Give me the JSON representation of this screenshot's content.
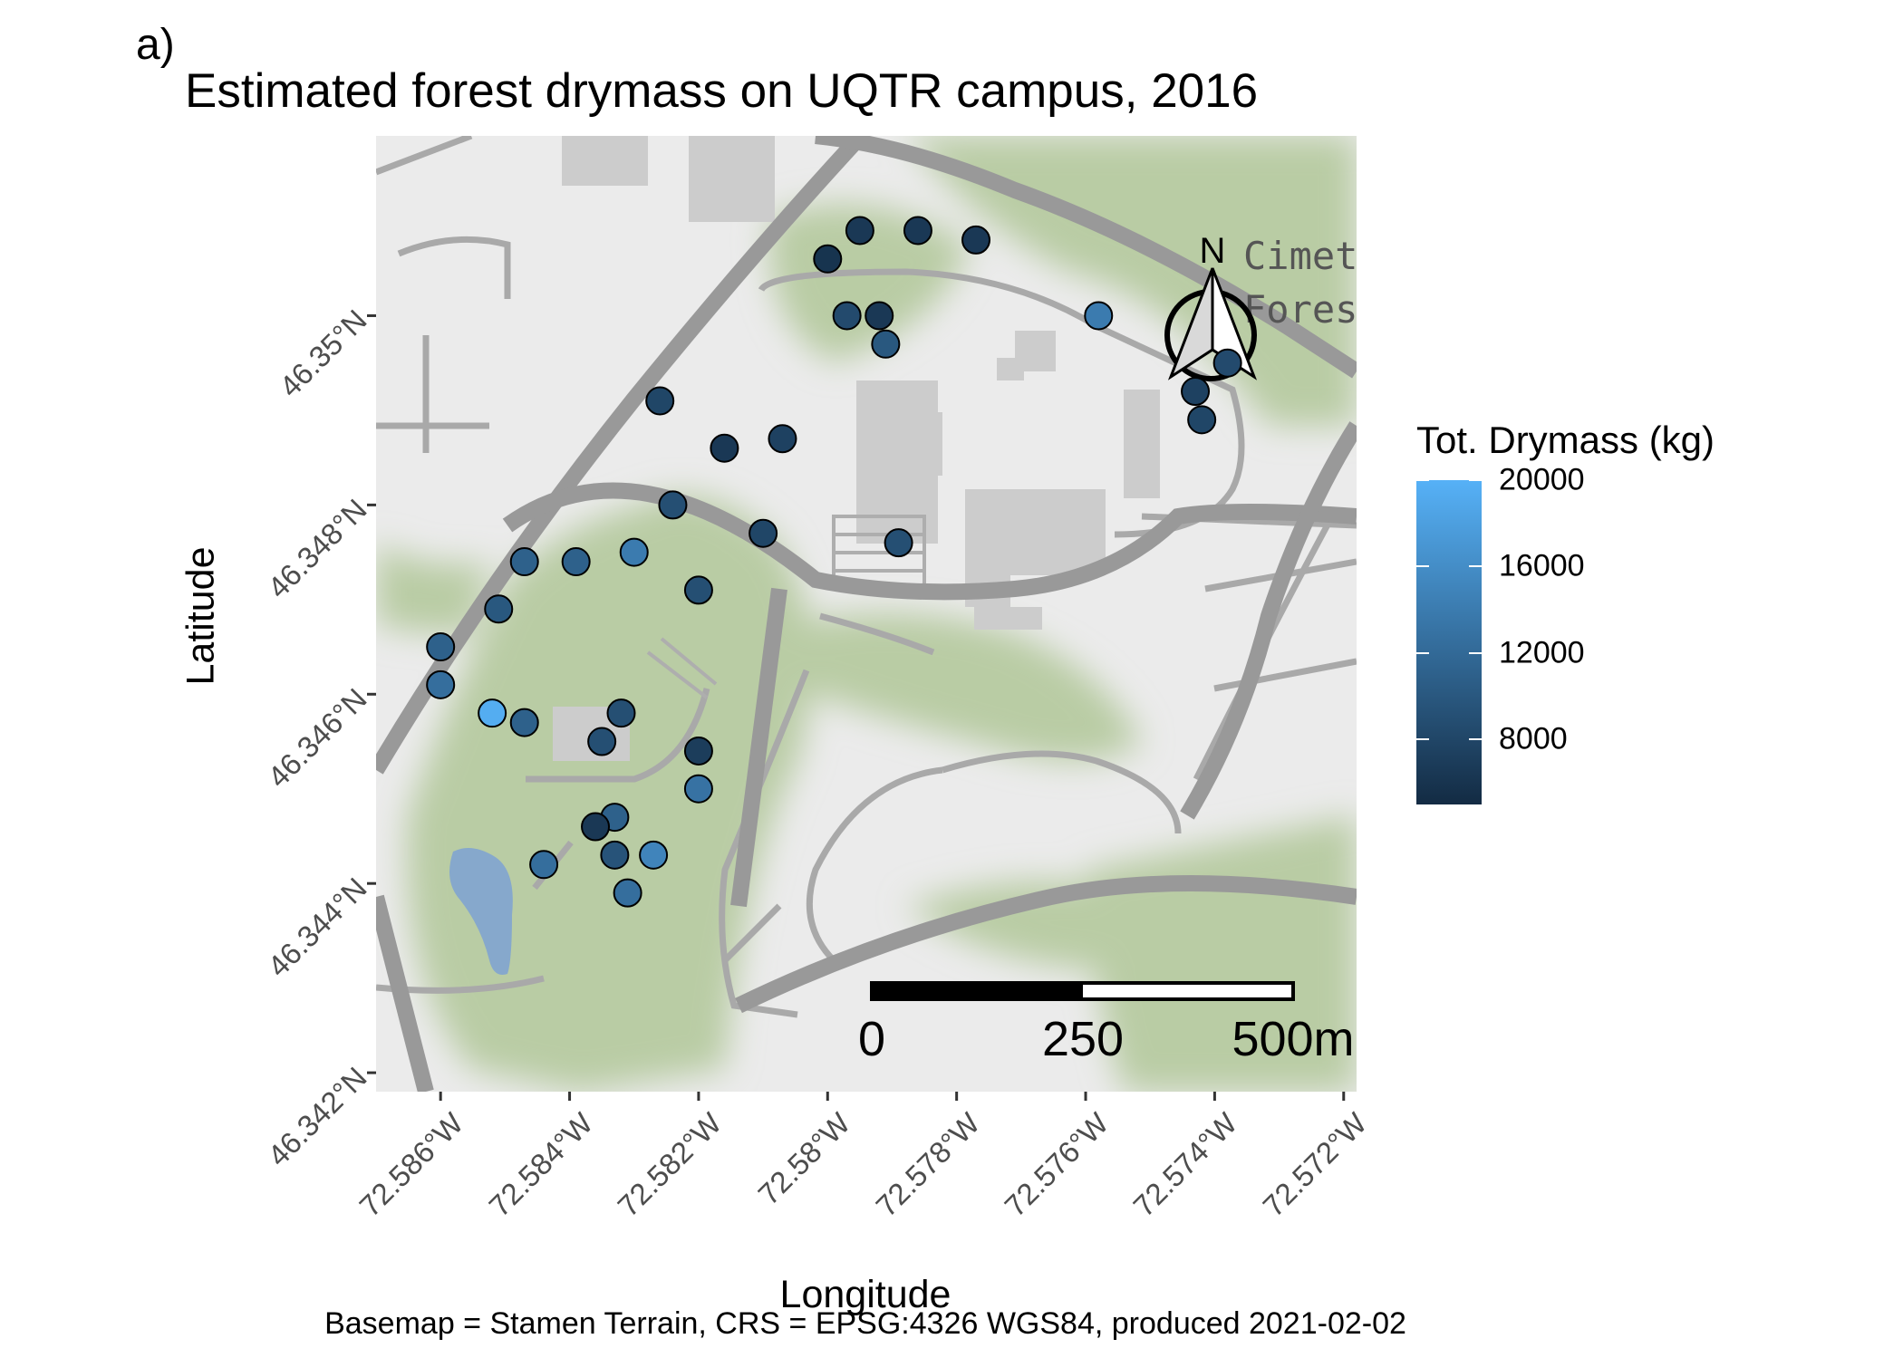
{
  "panel_label": "a)",
  "title": "Estimated forest drymass on UQTR campus, 2016",
  "caption": "Basemap = Stamen Terrain, CRS = EPSG:4326 WGS84, produced 2021-02-02",
  "axes": {
    "xlabel": "Longitude",
    "ylabel": "Latitude",
    "xlim": [
      -72.587,
      -72.5718
    ],
    "ylim": [
      46.3418,
      46.3519
    ],
    "x_ticks": [
      {
        "value": -72.586,
        "label": "72.586°W"
      },
      {
        "value": -72.584,
        "label": "72.584°W"
      },
      {
        "value": -72.582,
        "label": "72.582°W"
      },
      {
        "value": -72.58,
        "label": "72.58°W"
      },
      {
        "value": -72.578,
        "label": "72.578°W"
      },
      {
        "value": -72.576,
        "label": "72.576°W"
      },
      {
        "value": -72.574,
        "label": "72.574°W"
      },
      {
        "value": -72.572,
        "label": "72.572°W"
      }
    ],
    "y_ticks": [
      {
        "value": 46.35,
        "label": "46.35°N"
      },
      {
        "value": 46.348,
        "label": "46.348°N"
      },
      {
        "value": 46.346,
        "label": "46.346°N"
      },
      {
        "value": 46.344,
        "label": "46.344°N"
      },
      {
        "value": 46.342,
        "label": "46.342°N"
      }
    ]
  },
  "legend": {
    "title": "Tot. Drymass (kg)",
    "low_color": "#132b43",
    "high_color": "#56b1f7",
    "range": [
      5000,
      20000
    ],
    "breaks": [
      {
        "value": 20000,
        "label": "20000"
      },
      {
        "value": 16000,
        "label": "16000"
      },
      {
        "value": 12000,
        "label": "12000"
      },
      {
        "value": 8000,
        "label": "8000"
      }
    ]
  },
  "map": {
    "basemap": "Stamen Terrain",
    "place_labels": [
      "Cimeti",
      "Forest"
    ],
    "north_arrow_label": "N",
    "scale_bar": {
      "labels": [
        "0",
        "250",
        "500m"
      ]
    }
  },
  "colors": {
    "land": "#ebebeb",
    "vegetation": "#b9cca4",
    "roads": "#999999",
    "buildings": "#cccccc",
    "water": "#86a8cc"
  },
  "chart_data": {
    "type": "scatter",
    "title": "Estimated forest drymass on UQTR campus, 2016",
    "xlabel": "Longitude",
    "ylabel": "Latitude",
    "color_variable": "Tot. Drymass (kg)",
    "points": [
      {
        "lon": -72.58,
        "lat": 46.3506,
        "drymass": 6000
      },
      {
        "lon": -72.5795,
        "lat": 46.3509,
        "drymass": 6500
      },
      {
        "lon": -72.5786,
        "lat": 46.3509,
        "drymass": 6500
      },
      {
        "lon": -72.5777,
        "lat": 46.3508,
        "drymass": 6500
      },
      {
        "lon": -72.5797,
        "lat": 46.35,
        "drymass": 8500
      },
      {
        "lon": -72.5792,
        "lat": 46.35,
        "drymass": 6500
      },
      {
        "lon": -72.5791,
        "lat": 46.3497,
        "drymass": 10000
      },
      {
        "lon": -72.5758,
        "lat": 46.35,
        "drymass": 14000
      },
      {
        "lon": -72.5738,
        "lat": 46.3495,
        "drymass": 8500
      },
      {
        "lon": -72.5743,
        "lat": 46.3492,
        "drymass": 7500
      },
      {
        "lon": -72.5742,
        "lat": 46.3489,
        "drymass": 8000
      },
      {
        "lon": -72.5826,
        "lat": 46.3491,
        "drymass": 8000
      },
      {
        "lon": -72.5816,
        "lat": 46.3486,
        "drymass": 6500
      },
      {
        "lon": -72.5807,
        "lat": 46.3487,
        "drymass": 7500
      },
      {
        "lon": -72.5824,
        "lat": 46.348,
        "drymass": 9000
      },
      {
        "lon": -72.581,
        "lat": 46.3477,
        "drymass": 8000
      },
      {
        "lon": -72.5789,
        "lat": 46.3476,
        "drymass": 9000
      },
      {
        "lon": -72.5847,
        "lat": 46.3474,
        "drymass": 11000
      },
      {
        "lon": -72.5839,
        "lat": 46.3474,
        "drymass": 11000
      },
      {
        "lon": -72.583,
        "lat": 46.3475,
        "drymass": 14000
      },
      {
        "lon": -72.582,
        "lat": 46.3471,
        "drymass": 9000
      },
      {
        "lon": -72.5851,
        "lat": 46.3469,
        "drymass": 10000
      },
      {
        "lon": -72.586,
        "lat": 46.3465,
        "drymass": 11000
      },
      {
        "lon": -72.586,
        "lat": 46.3461,
        "drymass": 12500
      },
      {
        "lon": -72.5852,
        "lat": 46.3458,
        "drymass": 19500
      },
      {
        "lon": -72.5847,
        "lat": 46.3457,
        "drymass": 11000
      },
      {
        "lon": -72.5832,
        "lat": 46.3458,
        "drymass": 9000
      },
      {
        "lon": -72.5835,
        "lat": 46.3455,
        "drymass": 9000
      },
      {
        "lon": -72.582,
        "lat": 46.3454,
        "drymass": 7000
      },
      {
        "lon": -72.582,
        "lat": 46.345,
        "drymass": 13000
      },
      {
        "lon": -72.5833,
        "lat": 46.3447,
        "drymass": 11000
      },
      {
        "lon": -72.5836,
        "lat": 46.3446,
        "drymass": 6500
      },
      {
        "lon": -72.5833,
        "lat": 46.3443,
        "drymass": 9500
      },
      {
        "lon": -72.5844,
        "lat": 46.3442,
        "drymass": 12500
      },
      {
        "lon": -72.5827,
        "lat": 46.3443,
        "drymass": 15000
      },
      {
        "lon": -72.5831,
        "lat": 46.3439,
        "drymass": 12500
      }
    ]
  }
}
